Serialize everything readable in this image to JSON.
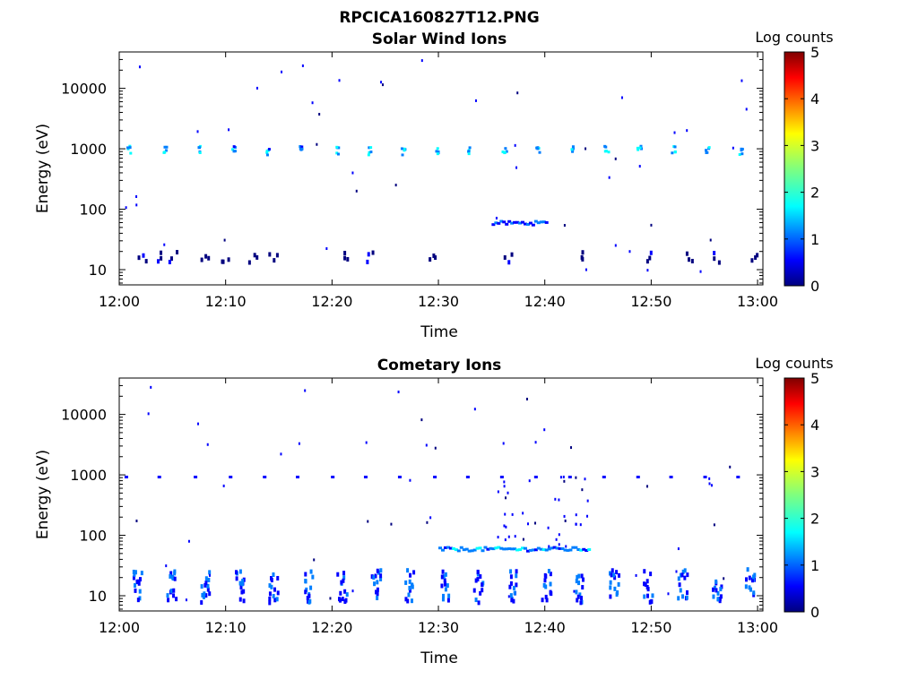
{
  "figure_title": "RPCICA160827T12.PNG",
  "colorbar": {
    "label": "Log counts",
    "ticks": [
      "0",
      "1",
      "2",
      "3",
      "4",
      "5"
    ],
    "colors": [
      "#00007f",
      "#0000ff",
      "#007fff",
      "#00ffff",
      "#7fff7f",
      "#ffff00",
      "#ff7f00",
      "#ff0000",
      "#7f0000"
    ]
  },
  "chart_data": [
    {
      "type": "heatmap",
      "title": "Solar Wind Ions",
      "xlabel": "Time",
      "ylabel": "Energy (eV)",
      "x_ticks": [
        "12:00",
        "12:10",
        "12:20",
        "12:30",
        "12:40",
        "12:50",
        "13:00"
      ],
      "x_range_min": [
        0,
        60.5
      ],
      "y_ticks": [
        "10",
        "100",
        "1000",
        "10000"
      ],
      "y_ticks_values": [
        10,
        100,
        1000,
        10000
      ],
      "y_range_eV": [
        5.6,
        40000
      ],
      "y_scale": "log",
      "colorbar_range": [
        0,
        5
      ],
      "features": [
        {
          "desc": "periodic bands near 1 keV",
          "t_min": [
            0.6,
            4,
            7.3,
            10.5,
            13.7,
            16.8,
            20.1,
            23.2,
            26.4,
            29.6,
            32.7,
            35.9,
            39.1,
            42.3,
            45.5,
            48.6,
            51.8,
            55.0,
            58.1
          ],
          "e_ev": [
            [
              800,
              1000
            ]
          ],
          "log_counts": 1.8
        },
        {
          "desc": "band near 55 eV",
          "t_min": [
            35,
            40
          ],
          "e_ev": [
            52,
            60
          ],
          "log_counts": 0.9
        },
        {
          "desc": "low energy streaks",
          "t_min": [
            1.7,
            3.4,
            4.6,
            7.5,
            9.4,
            12,
            14,
            21,
            23,
            29,
            36,
            43,
            49,
            53,
            55.6,
            59
          ],
          "e_ev": [
            12,
            18
          ],
          "log_counts": 0.3
        }
      ]
    },
    {
      "type": "heatmap",
      "title": "Cometary Ions",
      "xlabel": "Time",
      "ylabel": "Energy (eV)",
      "x_ticks": [
        "12:00",
        "12:10",
        "12:20",
        "12:30",
        "12:40",
        "12:50",
        "13:00"
      ],
      "x_range_min": [
        0,
        60.5
      ],
      "y_ticks": [
        "10",
        "100",
        "1000",
        "10000"
      ],
      "y_ticks_values": [
        10,
        100,
        1000,
        10000
      ],
      "y_range_eV": [
        5.6,
        40000
      ],
      "y_scale": "log",
      "colorbar_range": [
        0,
        5
      ],
      "features": [
        {
          "desc": "periodic low energy columns",
          "t_min": [
            1.2,
            4.4,
            7.6,
            10.8,
            14.0,
            17.2,
            20.4,
            23.6,
            26.8,
            30.0,
            33.2,
            36.4,
            39.6,
            42.8,
            46.0,
            49.2,
            52.4,
            55.6,
            58.8
          ],
          "e_ev": [
            7,
            25
          ],
          "log_counts": 1.2
        },
        {
          "desc": "band near 55 eV",
          "t_min": [
            30,
            44
          ],
          "e_ev": [
            52,
            60
          ],
          "log_counts": 1.4
        },
        {
          "desc": "dispersed ions",
          "t_min": [
            35,
            44
          ],
          "e_ev": [
            60,
            1000
          ],
          "log_counts": 0.6
        },
        {
          "desc": "~900 eV dots",
          "t_min": [
            0.5,
            3.6,
            7,
            10.3,
            13.5,
            16.6,
            19.9,
            23,
            26.2,
            29.5,
            32.6,
            35.8,
            39,
            42.2,
            45.4,
            48.6,
            51.7,
            54.9,
            58
          ],
          "e_ev": [
            850,
            900
          ],
          "log_counts": 0.4
        }
      ]
    }
  ]
}
